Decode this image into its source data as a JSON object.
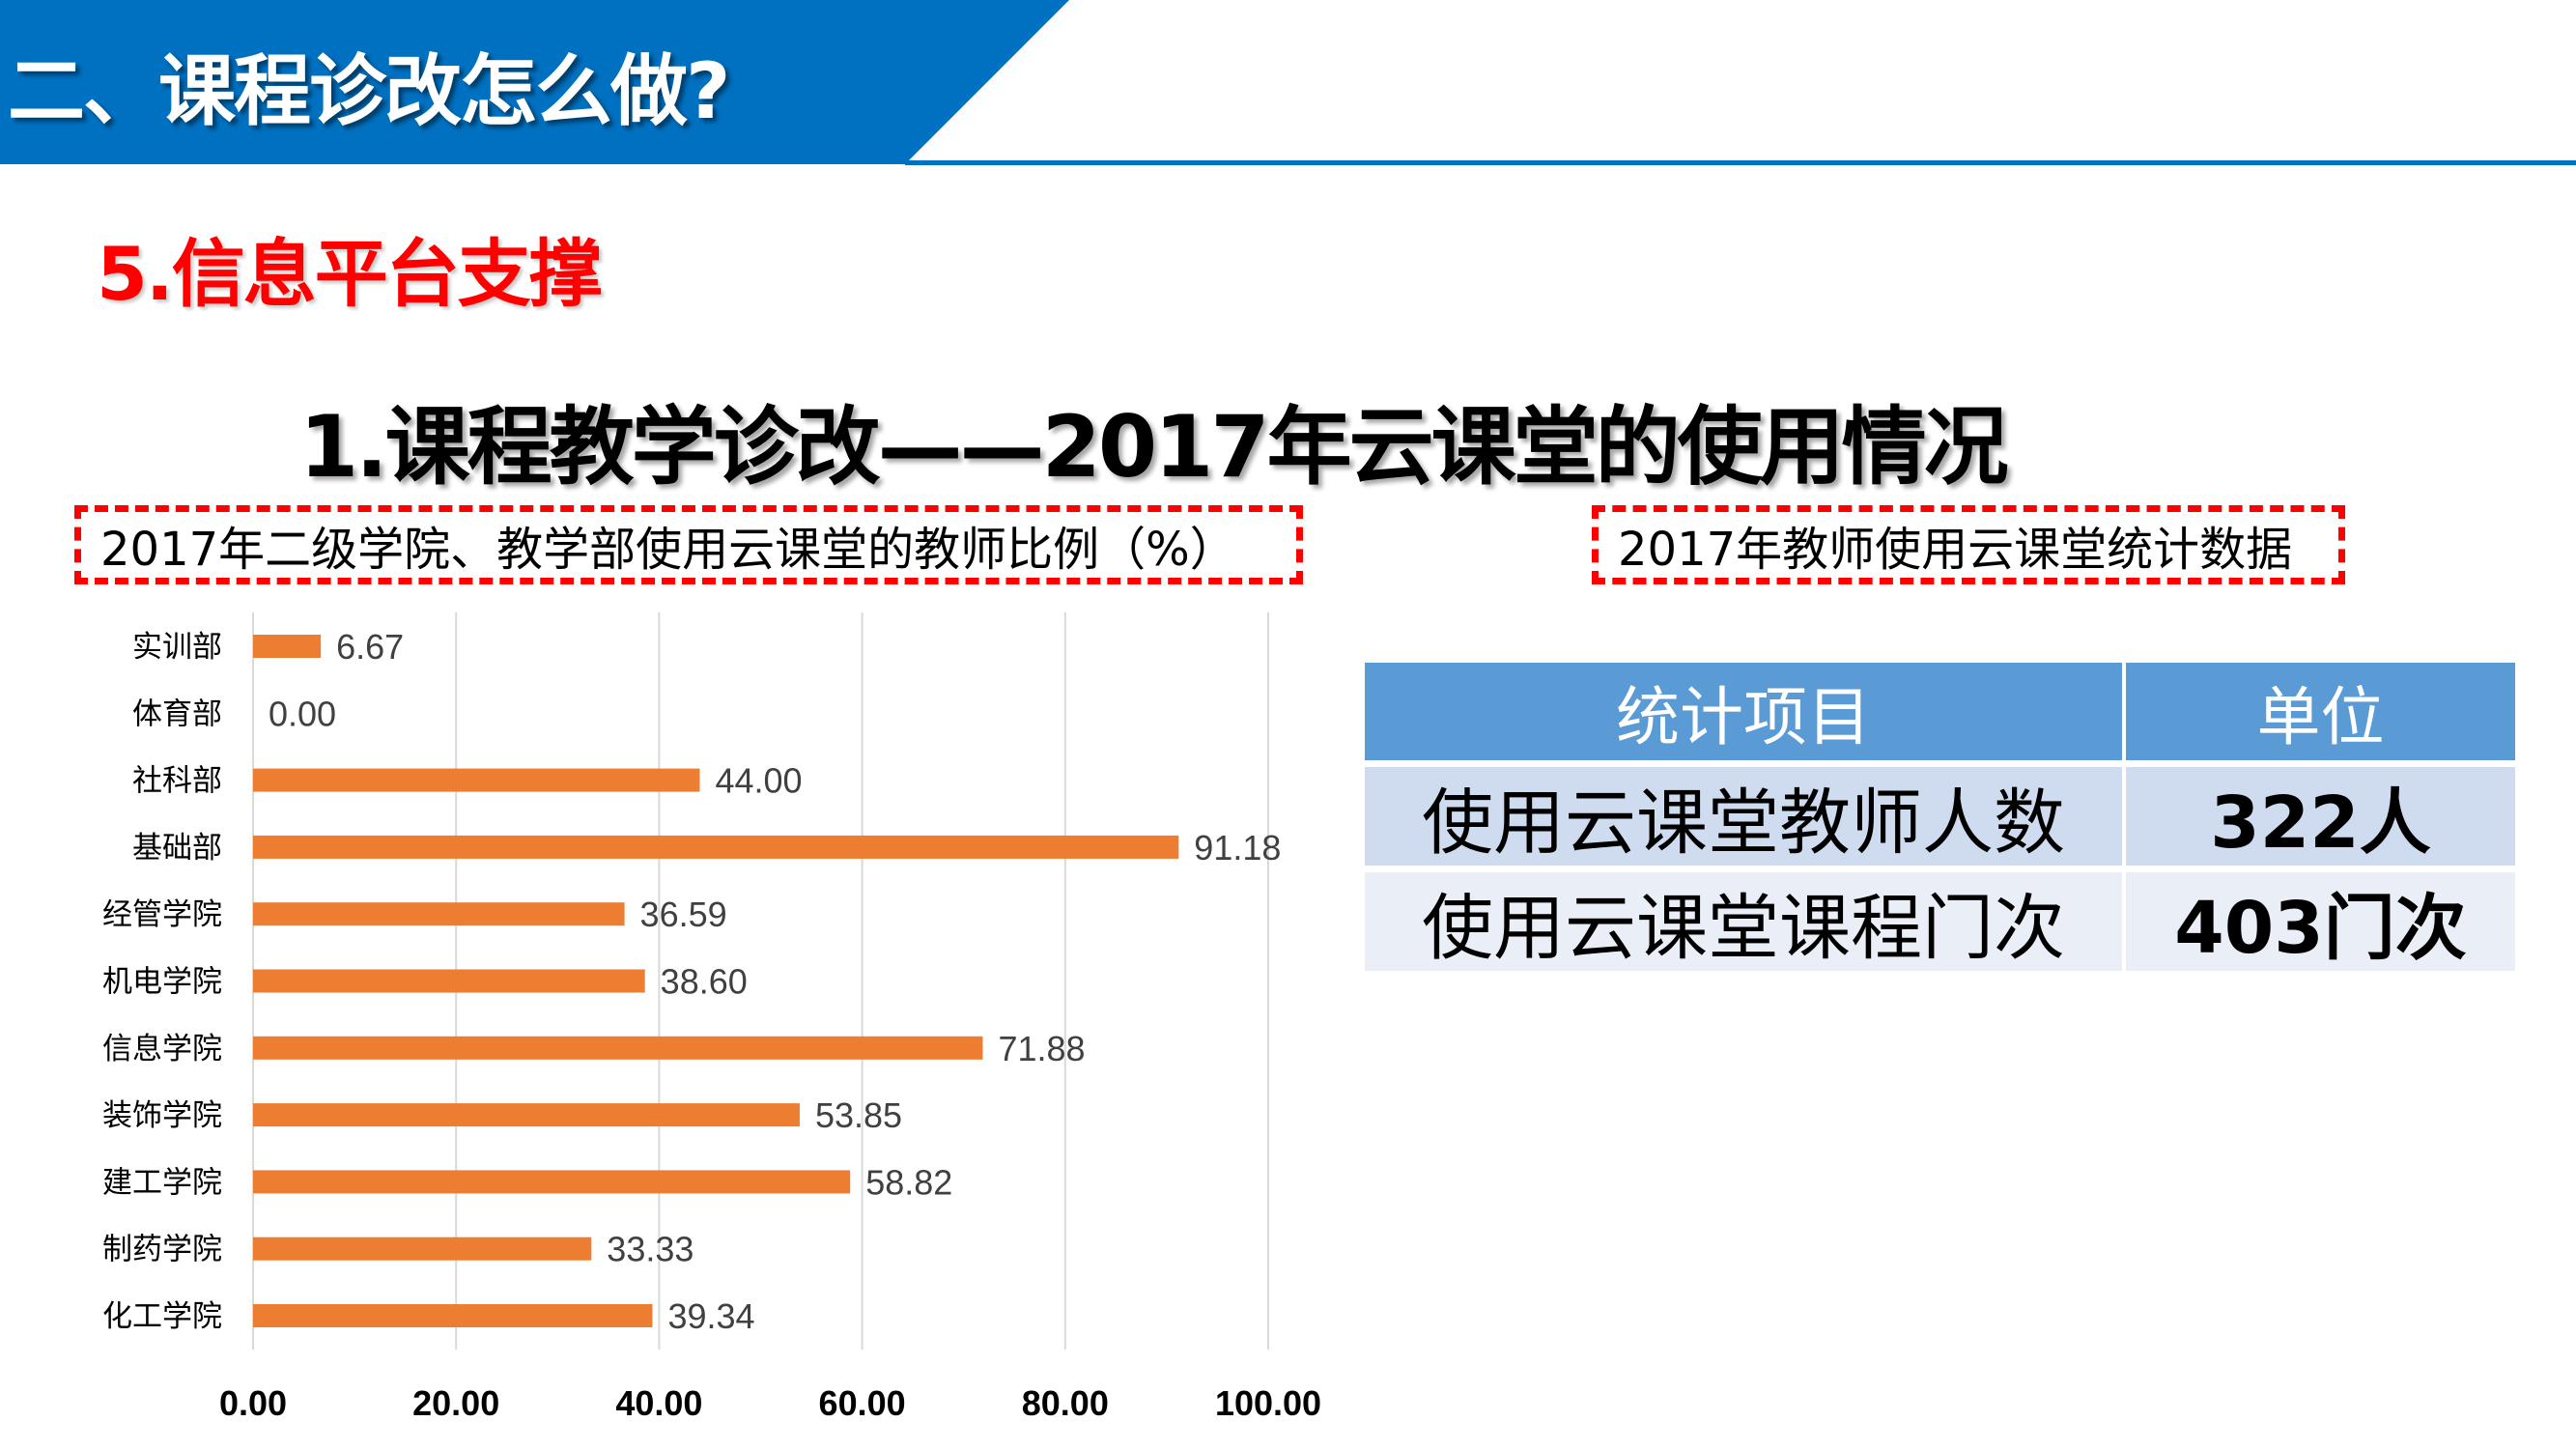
{
  "header": {
    "section_title": "二、课程诊改怎么做?",
    "sub_title": "5.信息平台支撑",
    "main_title": "1.课程教学诊改——2017年云课堂的使用情况"
  },
  "colors": {
    "banner": "#0070c0",
    "subtitle": "#ff0000",
    "bar": "#ed7d31",
    "table_header": "#5b9bd5",
    "dash_border": "#ff0000"
  },
  "left_box": {
    "caption": "2017年二级学院、教学部使用云课堂的教师比例（%）"
  },
  "right_box": {
    "caption": "2017年教师使用云课堂统计数据"
  },
  "chart_data": {
    "type": "bar",
    "orientation": "horizontal",
    "categories": [
      "实训部",
      "体育部",
      "社科部",
      "基础部",
      "经管学院",
      "机电学院",
      "信息学院",
      "装饰学院",
      "建工学院",
      "制药学院",
      "化工学院"
    ],
    "values": [
      6.67,
      0.0,
      44.0,
      91.18,
      36.59,
      38.6,
      71.88,
      53.85,
      58.82,
      33.33,
      39.34
    ],
    "value_labels": [
      "6.67",
      "0.00",
      "44.00",
      "91.18",
      "36.59",
      "38.60",
      "71.88",
      "53.85",
      "58.82",
      "33.33",
      "39.34"
    ],
    "xlim": [
      0,
      100
    ],
    "x_ticks": [
      "0.00",
      "20.00",
      "40.00",
      "60.00",
      "80.00",
      "100.00"
    ],
    "grid": true,
    "bar_color": "#ed7d31"
  },
  "table": {
    "headers": [
      "统计项目",
      "单位"
    ],
    "rows": [
      [
        "使用云课堂教师人数",
        "322人"
      ],
      [
        "使用云课堂课程门次",
        "403门次"
      ]
    ]
  }
}
